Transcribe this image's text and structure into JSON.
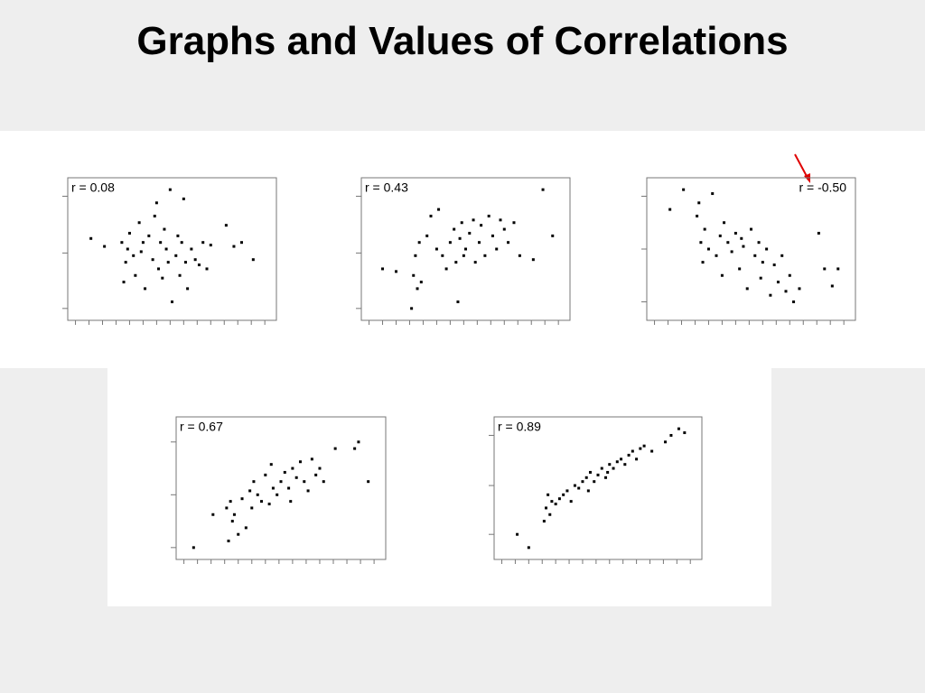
{
  "title": "Graphs and Values of Correlations",
  "chart_data": [
    {
      "type": "scatter",
      "annotation": "r = 0.08",
      "annotation_position": "top-left",
      "color": "#000000",
      "xlim": [
        -4,
        104
      ],
      "ylim": [
        -4,
        104
      ],
      "xticks": [
        0,
        7,
        14,
        21,
        28,
        35,
        42,
        49,
        56,
        63,
        70,
        77,
        84,
        91,
        98
      ],
      "yticks": [
        5,
        47,
        90
      ],
      "x": [
        8,
        15,
        24,
        25,
        26,
        27,
        28,
        30,
        31,
        33,
        34,
        35,
        36,
        38,
        40,
        41,
        42,
        43,
        44,
        45,
        46,
        47,
        48,
        49,
        50,
        52,
        53,
        54,
        55,
        56,
        57,
        58,
        60,
        62,
        64,
        66,
        68,
        70,
        78,
        82,
        86,
        92
      ],
      "y": [
        58,
        52,
        55,
        25,
        40,
        50,
        62,
        45,
        30,
        70,
        48,
        55,
        20,
        60,
        42,
        75,
        85,
        35,
        55,
        28,
        65,
        50,
        40,
        95,
        10,
        45,
        60,
        30,
        55,
        88,
        40,
        20,
        50,
        42,
        38,
        55,
        35,
        53,
        68,
        52,
        55,
        42
      ]
    },
    {
      "type": "scatter",
      "annotation": "r = 0.43",
      "annotation_position": "top-left",
      "color": "#000000",
      "xlim": [
        -4,
        104
      ],
      "ylim": [
        -4,
        104
      ],
      "xticks": [
        0,
        7,
        14,
        21,
        28,
        35,
        42,
        49,
        56,
        63,
        70,
        77,
        84,
        91,
        98
      ],
      "yticks": [
        5,
        47,
        90
      ],
      "x": [
        7,
        14,
        22,
        23,
        24,
        25,
        26,
        27,
        30,
        32,
        35,
        36,
        38,
        40,
        42,
        44,
        45,
        46,
        47,
        48,
        49,
        50,
        52,
        54,
        55,
        57,
        58,
        60,
        62,
        64,
        66,
        68,
        70,
        72,
        75,
        78,
        85,
        90,
        95
      ],
      "y": [
        35,
        33,
        5,
        30,
        45,
        20,
        55,
        25,
        60,
        75,
        50,
        80,
        45,
        35,
        55,
        65,
        40,
        10,
        58,
        70,
        45,
        50,
        62,
        72,
        40,
        55,
        68,
        45,
        75,
        60,
        50,
        72,
        65,
        55,
        70,
        45,
        42,
        95,
        60
      ]
    },
    {
      "type": "scatter",
      "annotation": "r = -0.50",
      "annotation_position": "top-right",
      "color": "#000000",
      "xlim": [
        -4,
        104
      ],
      "ylim": [
        -4,
        104
      ],
      "xticks": [
        0,
        7,
        14,
        21,
        28,
        35,
        42,
        49,
        56,
        63,
        70,
        77,
        84,
        91,
        98
      ],
      "yticks": [
        10,
        50,
        90
      ],
      "x": [
        8,
        15,
        22,
        23,
        24,
        25,
        26,
        28,
        30,
        32,
        34,
        35,
        36,
        38,
        40,
        42,
        44,
        45,
        46,
        48,
        50,
        52,
        54,
        55,
        56,
        58,
        60,
        62,
        64,
        66,
        68,
        70,
        72,
        75,
        85,
        88,
        92,
        95
      ],
      "y": [
        80,
        95,
        75,
        85,
        55,
        40,
        65,
        50,
        92,
        45,
        60,
        30,
        70,
        55,
        48,
        62,
        35,
        58,
        52,
        20,
        65,
        45,
        55,
        28,
        40,
        50,
        15,
        38,
        25,
        45,
        18,
        30,
        10,
        20,
        62,
        35,
        22,
        35
      ]
    },
    {
      "type": "scatter",
      "annotation": "r = 0.67",
      "annotation_position": "top-left",
      "color": "#000000",
      "xlim": [
        -4,
        104
      ],
      "ylim": [
        -4,
        104
      ],
      "xticks": [
        0,
        7,
        14,
        21,
        28,
        35,
        42,
        49,
        56,
        63,
        70,
        77,
        84,
        91,
        98
      ],
      "yticks": [
        5,
        45,
        85
      ],
      "x": [
        5,
        15,
        22,
        23,
        24,
        25,
        26,
        28,
        30,
        32,
        34,
        35,
        36,
        38,
        40,
        42,
        44,
        45,
        46,
        48,
        50,
        52,
        54,
        55,
        56,
        58,
        60,
        62,
        64,
        66,
        68,
        70,
        72,
        78,
        88,
        90,
        95
      ],
      "y": [
        5,
        30,
        35,
        10,
        40,
        25,
        30,
        15,
        42,
        20,
        48,
        35,
        55,
        45,
        40,
        60,
        38,
        68,
        50,
        45,
        55,
        62,
        50,
        40,
        65,
        58,
        70,
        55,
        48,
        72,
        60,
        65,
        55,
        80,
        80,
        85,
        55
      ]
    },
    {
      "type": "scatter",
      "annotation": "r = 0.89",
      "annotation_position": "top-left",
      "color": "#000000",
      "xlim": [
        -4,
        104
      ],
      "ylim": [
        -4,
        104
      ],
      "xticks": [
        0,
        7,
        14,
        21,
        28,
        35,
        42,
        49,
        56,
        63,
        70,
        77,
        84,
        91,
        98
      ],
      "yticks": [
        15,
        52,
        90
      ],
      "x": [
        8,
        14,
        22,
        23,
        24,
        25,
        26,
        28,
        30,
        32,
        34,
        36,
        38,
        40,
        42,
        44,
        45,
        46,
        48,
        50,
        52,
        54,
        55,
        56,
        58,
        60,
        62,
        64,
        66,
        68,
        70,
        72,
        74,
        78,
        85,
        88,
        92,
        95
      ],
      "y": [
        15,
        5,
        25,
        35,
        45,
        30,
        40,
        38,
        42,
        45,
        48,
        40,
        52,
        50,
        55,
        58,
        48,
        62,
        55,
        60,
        65,
        58,
        62,
        68,
        65,
        70,
        72,
        68,
        75,
        78,
        72,
        80,
        82,
        78,
        85,
        90,
        95,
        92
      ]
    }
  ]
}
